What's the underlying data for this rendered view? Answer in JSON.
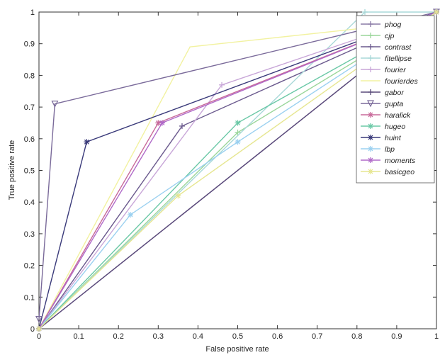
{
  "chart_data": {
    "type": "line",
    "title": "",
    "xlabel": "False positive rate",
    "ylabel": "True positive rate",
    "xlim": [
      0,
      1
    ],
    "ylim": [
      0,
      1
    ],
    "xticks": [
      "0",
      "0.1",
      "0.2",
      "0.3",
      "0.4",
      "0.5",
      "0.6",
      "0.7",
      "0.8",
      "0.9",
      "1"
    ],
    "yticks": [
      "0",
      "0.1",
      "0.2",
      "0.3",
      "0.4",
      "0.5",
      "0.6",
      "0.7",
      "0.8",
      "0.9",
      "1"
    ],
    "grid": false,
    "legend_position": "top-right",
    "series": [
      {
        "name": "phog",
        "color": "#8a7aa6",
        "marker": "plus",
        "x": [
          0,
          1
        ],
        "y": [
          0,
          1
        ]
      },
      {
        "name": "cjp",
        "color": "#9ad69a",
        "marker": "plus",
        "x": [
          0,
          0.5,
          1
        ],
        "y": [
          0,
          0.62,
          1
        ]
      },
      {
        "name": "contrast",
        "color": "#6b5a8e",
        "marker": "plus",
        "x": [
          0,
          0.36,
          1
        ],
        "y": [
          0,
          0.64,
          1
        ]
      },
      {
        "name": "fitellipse",
        "color": "#a8d8d8",
        "marker": "plus",
        "x": [
          0,
          0.82,
          1
        ],
        "y": [
          0,
          1,
          1
        ]
      },
      {
        "name": "fourier",
        "color": "#c8a6d8",
        "marker": "plus",
        "x": [
          0,
          0.46,
          1
        ],
        "y": [
          0,
          0.77,
          1
        ]
      },
      {
        "name": "fourierdes",
        "color": "#f2f2a0",
        "marker": "none",
        "x": [
          0,
          0.38,
          0.97,
          1
        ],
        "y": [
          0,
          0.89,
          0.97,
          1
        ]
      },
      {
        "name": "gabor",
        "color": "#5a4a7a",
        "marker": "plus",
        "x": [
          0,
          1
        ],
        "y": [
          0,
          1
        ]
      },
      {
        "name": "gupta",
        "color": "#7a6a9a",
        "marker": "triangle",
        "x": [
          0,
          0.04,
          1
        ],
        "y": [
          0.03,
          0.71,
          1
        ]
      },
      {
        "name": "haralick",
        "color": "#c86a9a",
        "marker": "star",
        "x": [
          0,
          0.3,
          1
        ],
        "y": [
          0,
          0.65,
          1
        ]
      },
      {
        "name": "hugeo",
        "color": "#6ac8a6",
        "marker": "star",
        "x": [
          0,
          0.5,
          1
        ],
        "y": [
          0,
          0.65,
          1
        ]
      },
      {
        "name": "huint",
        "color": "#3a3a7a",
        "marker": "star",
        "x": [
          0,
          0.12,
          1
        ],
        "y": [
          0,
          0.59,
          1
        ]
      },
      {
        "name": "lbp",
        "color": "#9ad0f0",
        "marker": "star",
        "x": [
          0,
          0.23,
          0.5,
          1
        ],
        "y": [
          0,
          0.36,
          0.59,
          1
        ]
      },
      {
        "name": "moments",
        "color": "#b06ac8",
        "marker": "star",
        "x": [
          0,
          0.31,
          1
        ],
        "y": [
          0,
          0.65,
          1
        ]
      },
      {
        "name": "basicgeo",
        "color": "#e6e690",
        "marker": "star",
        "x": [
          0,
          0.35,
          1
        ],
        "y": [
          0,
          0.42,
          1
        ]
      }
    ]
  }
}
